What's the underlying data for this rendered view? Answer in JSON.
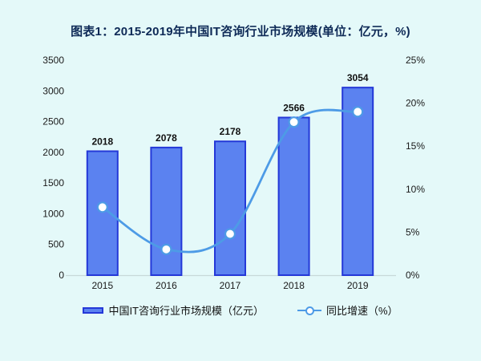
{
  "title": "图表1：2015-2019年中国IT咨询行业市场规模(单位：亿元，%)",
  "legend": {
    "bar_label": "中国IT咨询行业市场规模（亿元）",
    "line_label": "同比增速（%）"
  },
  "colors": {
    "background": "#E4F9F9",
    "bar_fill": "#5B82F0",
    "bar_border": "#2438D8",
    "line": "#4D9BE6",
    "marker_fill": "#FFFFFF",
    "title_text": "#0E2A57",
    "axis_text": "#1A1A1A",
    "axis_line": "#C7D9D9"
  },
  "chart_data": {
    "type": "bar",
    "subtype": "combo-bar-line",
    "title": "图表1：2015-2019年中国IT咨询行业市场规模(单位：亿元，%)",
    "categories": [
      "2015",
      "2016",
      "2017",
      "2018",
      "2019"
    ],
    "series": [
      {
        "name": "中国IT咨询行业市场规模（亿元）",
        "type": "bar",
        "axis": "left",
        "values": [
          2018,
          2078,
          2178,
          2566,
          3054
        ],
        "data_labels": [
          "2018",
          "2078",
          "2178",
          "2566",
          "3054"
        ]
      },
      {
        "name": "同比增速（%）",
        "type": "line",
        "axis": "right",
        "values": [
          7.9,
          3.0,
          4.8,
          17.8,
          19.0
        ]
      }
    ],
    "left_axis": {
      "min": 0,
      "max": 3500,
      "step": 500,
      "ticks": [
        "0",
        "500",
        "1000",
        "1500",
        "2000",
        "2500",
        "3000",
        "3500"
      ]
    },
    "right_axis": {
      "min": 0,
      "max": 25,
      "step": 5,
      "suffix": "%",
      "ticks": [
        "0%",
        "5%",
        "10%",
        "15%",
        "20%",
        "25%"
      ]
    },
    "grid": false,
    "legend_position": "bottom",
    "xlabel": "",
    "ylabel": ""
  }
}
